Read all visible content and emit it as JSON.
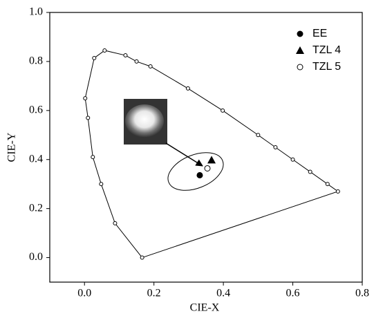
{
  "chart_data": {
    "type": "scatter",
    "xlabel": "CIE-X",
    "ylabel": "CIE-Y",
    "xlim": [
      -0.1,
      0.8
    ],
    "ylim": [
      -0.1,
      1.0
    ],
    "xticks": [
      {
        "value": 0.0,
        "label": "0.0"
      },
      0.2,
      0.4,
      0.6,
      0.8
    ],
    "yticks": [
      {
        "value": 0.0,
        "label": "0.0"
      },
      0.2,
      0.4,
      0.6,
      0.8,
      {
        "value": 1.0,
        "label": "1.0"
      }
    ],
    "locus": {
      "color": "#000000",
      "x": [
        0.166,
        0.088,
        0.048,
        0.024,
        0.01,
        0.002,
        0.028,
        0.058,
        0.118,
        0.15,
        0.19,
        0.298,
        0.398,
        0.5,
        0.55,
        0.6,
        0.65,
        0.7,
        0.73
      ],
      "y": [
        0.0,
        0.14,
        0.3,
        0.41,
        0.57,
        0.65,
        0.814,
        0.845,
        0.825,
        0.8,
        0.78,
        0.69,
        0.6,
        0.5,
        0.45,
        0.4,
        0.35,
        0.3,
        0.27
      ]
    },
    "series": [
      {
        "name": "EE",
        "marker": "circle",
        "color": "#000000",
        "x": [
          0.332
        ],
        "y": [
          0.336
        ]
      },
      {
        "name": "TZL 4",
        "marker": "triangle",
        "color": "#000000",
        "x": [
          0.366
        ],
        "y": [
          0.398
        ]
      },
      {
        "name": "TZL 5",
        "marker": "open-circle",
        "color": "#000000",
        "x": [
          0.354
        ],
        "y": [
          0.364
        ]
      }
    ]
  }
}
